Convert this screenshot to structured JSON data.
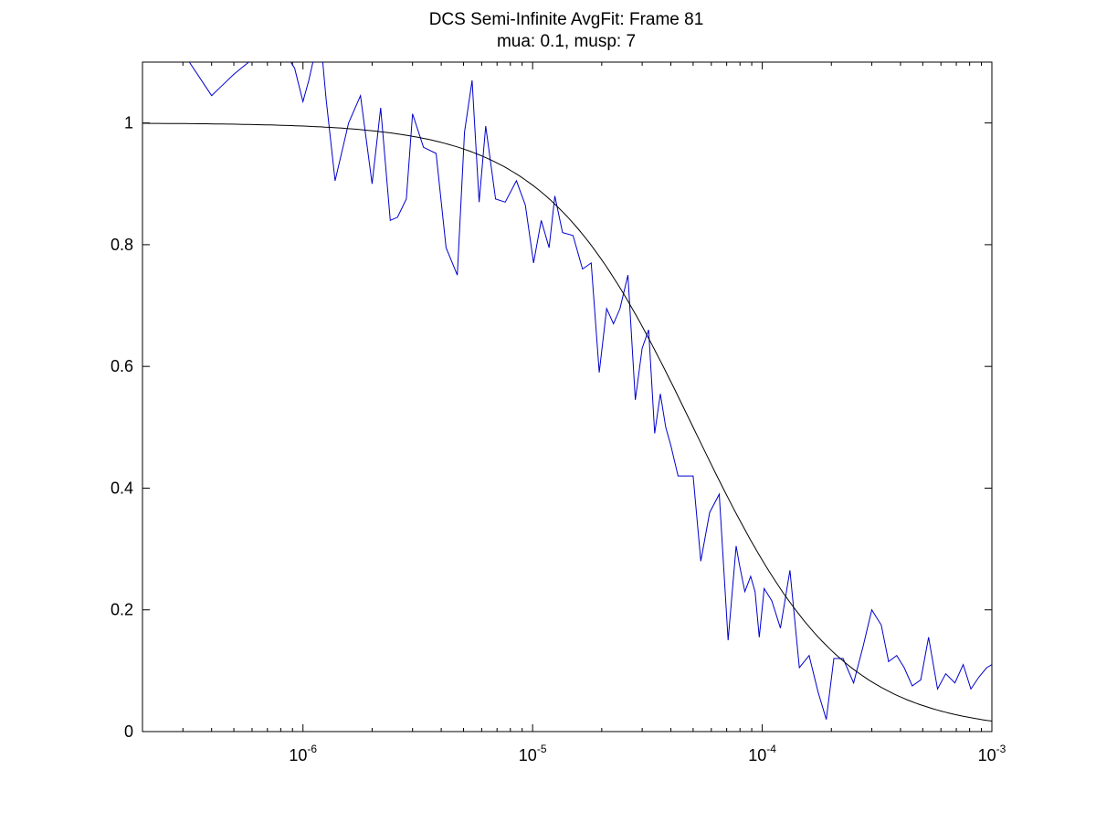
{
  "chart_data": {
    "type": "line",
    "title": "DCS Semi-Infinite AvgFit: Frame 81",
    "subtitle": "mua: 0.1, musp: 7",
    "xlabel": "",
    "ylabel": "",
    "x_scale": "log",
    "xlim": [
      2e-07,
      0.001
    ],
    "ylim": [
      0,
      1.1
    ],
    "grid": false,
    "x_tick_labels": [
      {
        "value": 1e-06,
        "base": "10",
        "exp": "-6"
      },
      {
        "value": 1e-05,
        "base": "10",
        "exp": "-5"
      },
      {
        "value": 0.0001,
        "base": "10",
        "exp": "-4"
      },
      {
        "value": 0.001,
        "base": "10",
        "exp": "-3"
      }
    ],
    "y_tick_labels": [
      {
        "value": 0,
        "label": "0"
      },
      {
        "value": 0.2,
        "label": "0.2"
      },
      {
        "value": 0.4,
        "label": "0.4"
      },
      {
        "value": 0.6,
        "label": "0.6"
      },
      {
        "value": 0.8,
        "label": "0.8"
      },
      {
        "value": 1,
        "label": "1"
      }
    ],
    "series": [
      {
        "color": "#0000cc",
        "x": [
          3.2e-07,
          4e-07,
          4.4e-07,
          5e-07,
          5.8e-07,
          6.6e-07,
          7.4e-07,
          8.2e-07,
          9.2e-07,
          1e-06,
          1.06e-06,
          1.12e-06,
          1.2e-06,
          1.26e-06,
          1.38e-06,
          1.58e-06,
          1.78e-06,
          2e-06,
          2.18e-06,
          2.4e-06,
          2.58e-06,
          2.82e-06,
          3e-06,
          3.35e-06,
          3.8e-06,
          4.2e-06,
          4.7e-06,
          5.05e-06,
          5.45e-06,
          5.85e-06,
          6.25e-06,
          6.9e-06,
          7.6e-06,
          8.5e-06,
          9.3e-06,
          1.01e-05,
          1.09e-05,
          1.18e-05,
          1.25e-05,
          1.35e-05,
          1.5e-05,
          1.65e-05,
          1.8e-05,
          1.95e-05,
          2.1e-05,
          2.25e-05,
          2.4e-05,
          2.6e-05,
          2.8e-05,
          3e-05,
          3.2e-05,
          3.4e-05,
          3.6e-05,
          3.8e-05,
          4e-05,
          4.3e-05,
          4.65e-05,
          5e-05,
          5.4e-05,
          5.9e-05,
          6.5e-05,
          7.1e-05,
          7.7e-05,
          7.95e-05,
          8.4e-05,
          8.9e-05,
          9.3e-05,
          9.7e-05,
          0.000102,
          0.00011,
          0.00012,
          0.000132,
          0.000145,
          0.00016,
          0.000175,
          0.00019,
          0.000205,
          0.000225,
          0.00025,
          0.000275,
          0.0003,
          0.00033,
          0.000355,
          0.000385,
          0.000415,
          0.00045,
          0.00049,
          0.00053,
          0.00058,
          0.00063,
          0.00069,
          0.00075,
          0.00081,
          0.00088,
          0.00095,
          0.001
        ],
        "y": [
          1.1,
          1.045,
          1.06,
          1.08,
          1.1,
          1.12,
          1.13,
          1.12,
          1.09,
          1.035,
          1.07,
          1.11,
          1.13,
          1.04,
          0.905,
          1.0,
          1.045,
          0.9,
          1.025,
          0.84,
          0.845,
          0.875,
          1.015,
          0.96,
          0.95,
          0.795,
          0.75,
          0.985,
          1.07,
          0.87,
          0.995,
          0.875,
          0.87,
          0.905,
          0.865,
          0.77,
          0.84,
          0.795,
          0.88,
          0.82,
          0.815,
          0.76,
          0.77,
          0.59,
          0.695,
          0.67,
          0.695,
          0.75,
          0.545,
          0.63,
          0.66,
          0.49,
          0.555,
          0.5,
          0.47,
          0.42,
          0.42,
          0.42,
          0.28,
          0.36,
          0.39,
          0.15,
          0.305,
          0.275,
          0.23,
          0.255,
          0.23,
          0.155,
          0.235,
          0.215,
          0.17,
          0.265,
          0.105,
          0.125,
          0.065,
          0.02,
          0.12,
          0.12,
          0.08,
          0.14,
          0.2,
          0.175,
          0.115,
          0.125,
          0.105,
          0.075,
          0.085,
          0.155,
          0.07,
          0.095,
          0.08,
          0.11,
          0.07,
          0.09,
          0.105,
          0.11
        ]
      },
      {
        "color": "#000000",
        "model": "1 / (1 + x / 5.0e-5)"
      }
    ]
  }
}
